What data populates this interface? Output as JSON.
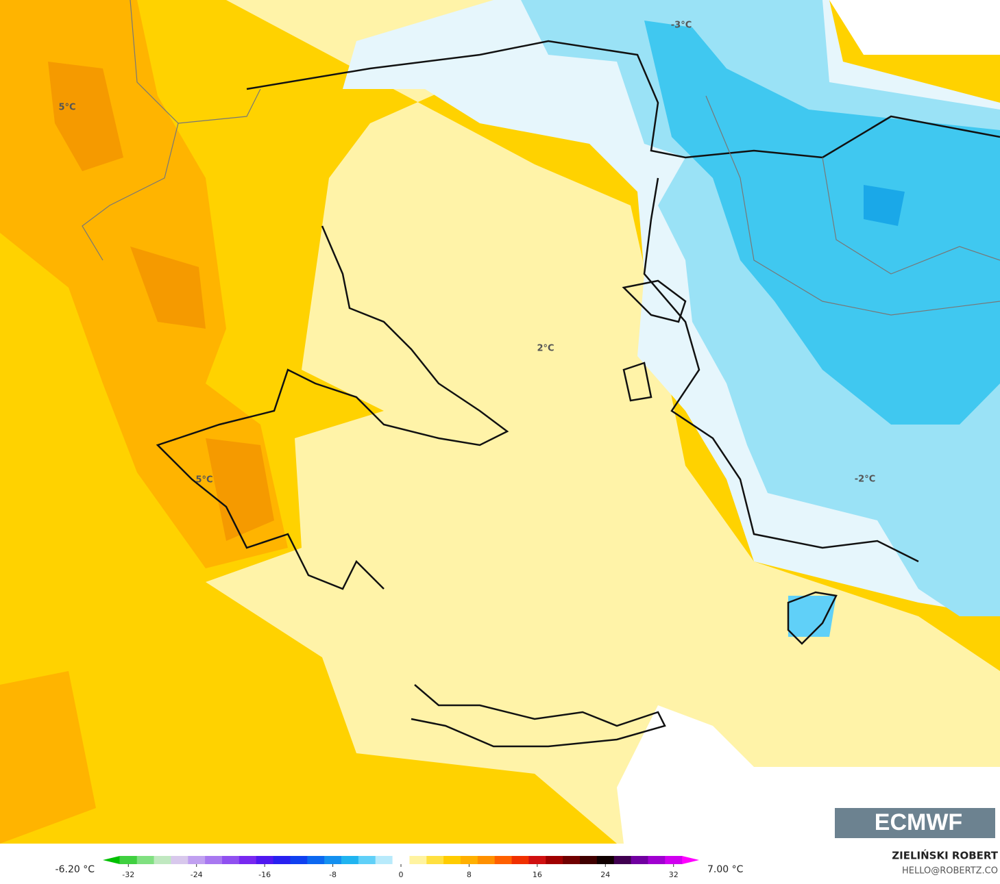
{
  "map": {
    "labels": [
      "5°C",
      "2°C",
      "-3°C",
      "-2°C",
      "5°C"
    ],
    "logo": "ECMWF",
    "author": "ZIELIŃSKI ROBERT",
    "contact": "HELLO@ROBERTZ.CO"
  },
  "colorbar": {
    "min_label": "-6.20 °C",
    "max_label": "7.00 °C",
    "lim": [
      -35,
      35
    ],
    "ticks": [
      -32,
      -24,
      -16,
      -8,
      0,
      8,
      16,
      24,
      32
    ],
    "colors": [
      "#00c000",
      "#40d040",
      "#80e080",
      "#c0e8c0",
      "#d8c8ec",
      "#c0a0f0",
      "#a878f0",
      "#9050f0",
      "#7828f0",
      "#5018f0",
      "#2820f0",
      "#1040f0",
      "#0c68f0",
      "#1490f0",
      "#20b4f0",
      "#60d0f8",
      "#b8eafb",
      "#ffffff",
      "#fff3a0",
      "#ffe040",
      "#ffcc00",
      "#ffb000",
      "#ff9000",
      "#ff6000",
      "#f03000",
      "#d01010",
      "#a00000",
      "#700000",
      "#400000",
      "#100000",
      "#400050",
      "#7000a0",
      "#a000d0",
      "#d000f0",
      "#ff00ff"
    ]
  }
}
